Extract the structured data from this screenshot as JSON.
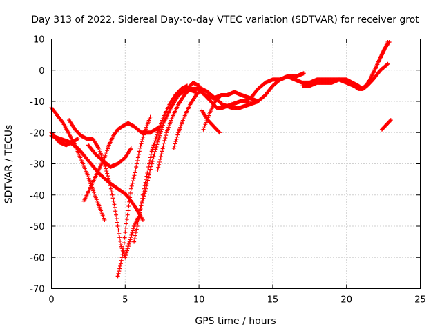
{
  "chart_data": {
    "type": "scatter",
    "title": "Day 313 of 2022, Sidereal Day-to-day VTEC variation (SDTVAR) for receiver grot",
    "xlabel": "GPS time / hours",
    "ylabel": "SDTVAR / TECUs",
    "xlim": [
      0,
      25
    ],
    "ylim": [
      -70,
      10
    ],
    "xticks": [
      0,
      5,
      10,
      15,
      20,
      25
    ],
    "yticks": [
      10,
      0,
      -10,
      -20,
      -30,
      -40,
      -50,
      -60,
      -70
    ],
    "grid": true,
    "marker": "+",
    "color": "#ff0000",
    "series": [
      {
        "x": [
          0,
          0.8,
          1.6,
          2.4,
          3.1,
          3.6
        ],
        "y": [
          -12,
          -17,
          -24,
          -33,
          -42,
          -48
        ]
      },
      {
        "x": [
          0,
          0.5,
          1.0,
          1.4,
          1.8
        ],
        "y": [
          -20,
          -23,
          -24,
          -23,
          -22
        ]
      },
      {
        "x": [
          0,
          0.6,
          1.2,
          1.8,
          2.5,
          3.2,
          3.9,
          4.5,
          5.1,
          5.7,
          6.2
        ],
        "y": [
          -21,
          -22,
          -23,
          -25,
          -29,
          -33,
          -36,
          -38,
          -40,
          -44,
          -48
        ]
      },
      {
        "x": [
          2.2,
          2.6,
          3.0,
          3.3,
          3.6,
          3.9,
          4.2,
          4.5,
          4.8,
          5.2,
          5.6,
          6.1,
          6.7,
          7.4
        ],
        "y": [
          -42,
          -38,
          -34,
          -31,
          -28,
          -24,
          -21,
          -19,
          -18,
          -17,
          -18,
          -20,
          -20,
          -18
        ]
      },
      {
        "x": [
          1.2,
          1.6,
          2.0,
          2.4,
          2.8,
          3.2,
          3.6,
          4.0,
          4.3,
          4.5,
          4.7,
          5.0,
          5.3,
          5.6,
          5.9
        ],
        "y": [
          -16,
          -19,
          -21,
          -22,
          -22,
          -25,
          -30,
          -37,
          -44,
          -50,
          -56,
          -60,
          -55,
          -50,
          -47
        ]
      },
      {
        "x": [
          4.5,
          4.7,
          4.9,
          5.0,
          5.2,
          5.4,
          5.7,
          6.0,
          6.3,
          6.7
        ],
        "y": [
          -66,
          -62,
          -57,
          -52,
          -45,
          -38,
          -32,
          -25,
          -20,
          -15
        ]
      },
      {
        "x": [
          2.5,
          3.0,
          3.5,
          4.0,
          4.5,
          5.0,
          5.4
        ],
        "y": [
          -24,
          -27,
          -29,
          -31,
          -30,
          -28,
          -25
        ]
      },
      {
        "x": [
          5.6,
          5.9,
          6.2,
          6.5,
          6.8,
          7.2,
          7.6,
          8.0,
          8.4,
          8.8,
          9.2
        ],
        "y": [
          -55,
          -48,
          -40,
          -33,
          -26,
          -20,
          -15,
          -11,
          -8,
          -6,
          -5
        ]
      },
      {
        "x": [
          6.0,
          6.4,
          6.8,
          7.2,
          7.6,
          8.1,
          8.6,
          9.2,
          9.8
        ],
        "y": [
          -45,
          -38,
          -30,
          -23,
          -17,
          -12,
          -8,
          -6,
          -7
        ]
      },
      {
        "x": [
          7.2,
          7.5,
          7.8,
          8.2,
          8.6,
          9.0,
          9.4,
          9.9,
          10.4,
          11.0,
          11.5
        ],
        "y": [
          -32,
          -26,
          -20,
          -15,
          -11,
          -8,
          -6,
          -6,
          -8,
          -9,
          -8
        ]
      },
      {
        "x": [
          8.3,
          8.6,
          9.0,
          9.4,
          9.8,
          10.2,
          10.6,
          11.1,
          11.6,
          12.2,
          12.8,
          13.4,
          14.0
        ],
        "y": [
          -25,
          -20,
          -15,
          -11,
          -8,
          -6,
          -7,
          -9,
          -11,
          -12,
          -12,
          -11,
          -10
        ]
      },
      {
        "x": [
          9.2,
          9.6,
          10.0,
          10.4,
          10.8,
          11.2,
          11.6,
          12.2,
          12.8,
          13.4
        ],
        "y": [
          -6,
          -4,
          -5,
          -8,
          -10,
          -12,
          -12,
          -11,
          -10,
          -10
        ]
      },
      {
        "x": [
          10.3,
          10.7,
          11.1,
          11.5,
          11.9,
          12.4,
          12.9,
          13.5,
          14.0,
          14.5,
          15.0,
          15.5,
          16.0,
          16.6,
          17.1
        ],
        "y": [
          -19,
          -14,
          -10,
          -8,
          -8,
          -7,
          -8,
          -9,
          -10,
          -8,
          -5,
          -3,
          -2,
          -2,
          -1
        ]
      },
      {
        "x": [
          10.2,
          10.6,
          11.0,
          11.4
        ],
        "y": [
          -13,
          -16,
          -18,
          -20
        ]
      },
      {
        "x": [
          13.5,
          14.0,
          14.5,
          15.0,
          15.5,
          16.0,
          16.5,
          17.0,
          17.5,
          18.0,
          18.5,
          19.0,
          19.5,
          20.0,
          20.5,
          21.0,
          21.3,
          21.6,
          22.0,
          22.4,
          22.8
        ],
        "y": [
          -9,
          -6,
          -4,
          -3,
          -3,
          -2,
          -3,
          -4,
          -4,
          -3,
          -3,
          -3,
          -3,
          -4,
          -5,
          -6,
          -5,
          -3,
          1,
          5,
          9
        ]
      },
      {
        "x": [
          17.0,
          17.5,
          18.0,
          18.5,
          19.0,
          19.5,
          20.0,
          20.4,
          20.8,
          21.1,
          21.4,
          21.8,
          22.3,
          22.8
        ],
        "y": [
          -5,
          -5,
          -4,
          -4,
          -4,
          -3,
          -3,
          -4,
          -5,
          -6,
          -5,
          -3,
          0,
          2
        ]
      },
      {
        "x": [
          20.2,
          20.5,
          20.8,
          21.1,
          21.4,
          21.7,
          22.0,
          22.3,
          22.6,
          22.9
        ],
        "y": [
          -4,
          -5,
          -6,
          -6,
          -5,
          -2,
          1,
          4,
          7,
          9
        ]
      },
      {
        "x": [
          22.4,
          22.6,
          22.8,
          23.0
        ],
        "y": [
          -19,
          -18,
          -17,
          -16
        ]
      }
    ]
  }
}
